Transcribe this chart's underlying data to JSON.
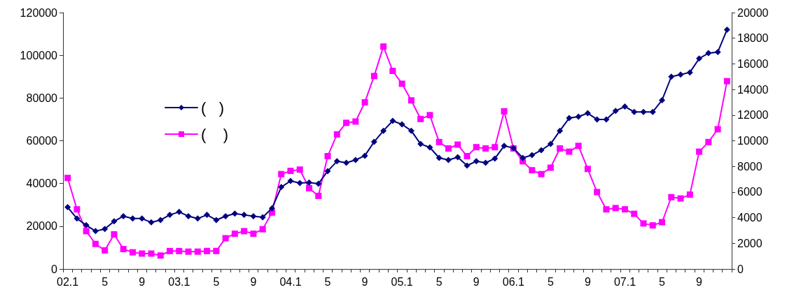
{
  "chart_data": {
    "type": "line",
    "categories": [
      "02.1",
      null,
      null,
      null,
      "5",
      null,
      null,
      null,
      "9",
      null,
      null,
      null,
      "03.1",
      null,
      null,
      null,
      "5",
      null,
      null,
      null,
      "9",
      null,
      null,
      null,
      "04.1",
      null,
      null,
      null,
      "5",
      null,
      null,
      null,
      "9",
      null,
      null,
      null,
      "05.1",
      null,
      null,
      null,
      "5",
      null,
      null,
      null,
      "9",
      null,
      null,
      null,
      "06.1",
      null,
      null,
      null,
      "5",
      null,
      null,
      null,
      "9",
      null,
      null,
      null,
      "07.1",
      null,
      null,
      null,
      "5",
      null,
      null,
      null,
      "9",
      null,
      null,
      null
    ],
    "series": [
      {
        "name": "(   )",
        "color": "#000080",
        "marker": "diamond",
        "values": [
          28900,
          23600,
          20500,
          17700,
          18700,
          22300,
          24700,
          23600,
          23600,
          21800,
          22900,
          25300,
          26700,
          24700,
          23600,
          25300,
          22900,
          24700,
          25900,
          25300,
          24700,
          24200,
          28400,
          38300,
          41200,
          40200,
          40500,
          39900,
          45800,
          50400,
          49700,
          51000,
          53000,
          59500,
          64700,
          69300,
          67700,
          64700,
          58500,
          56900,
          52000,
          51000,
          52300,
          48400,
          50400,
          49700,
          51700,
          57600,
          56600,
          52000,
          53300,
          55600,
          58500,
          64700,
          70600,
          71300,
          72900,
          70000,
          70000,
          74000,
          76000,
          73500,
          73500,
          73500,
          79000,
          90000,
          91000,
          92000,
          98500,
          101000,
          101500,
          112000
        ]
      },
      {
        "name": "(    )",
        "color": "#ff00ff",
        "marker": "square",
        "axis": "y2",
        "values": [
          7100,
          4650,
          2950,
          1950,
          1450,
          2700,
          1550,
          1300,
          1200,
          1200,
          1050,
          1400,
          1400,
          1350,
          1350,
          1400,
          1400,
          2400,
          2750,
          2950,
          2750,
          3100,
          4400,
          7400,
          7650,
          7750,
          6300,
          5700,
          8800,
          10500,
          11400,
          11500,
          13000,
          15050,
          17350,
          15450,
          14450,
          13150,
          11700,
          12000,
          9900,
          9400,
          9700,
          8800,
          9500,
          9400,
          9500,
          12300,
          9400,
          8400,
          7700,
          7400,
          7900,
          9400,
          9150,
          9600,
          7800,
          6000,
          4650,
          4750,
          4650,
          4300,
          3550,
          3400,
          3650,
          5600,
          5500,
          5800,
          9150,
          9900,
          10900,
          14650
        ]
      }
    ],
    "ylim": [
      0,
      120000
    ],
    "yticks": [
      0,
      20000,
      40000,
      60000,
      80000,
      100000,
      120000
    ],
    "y2lim": [
      0,
      20000
    ],
    "y2ticks": [
      0,
      2000,
      4000,
      6000,
      8000,
      10000,
      12000,
      14000,
      16000,
      18000,
      20000
    ],
    "grid": false,
    "legend": "left",
    "line_style": "solid"
  }
}
